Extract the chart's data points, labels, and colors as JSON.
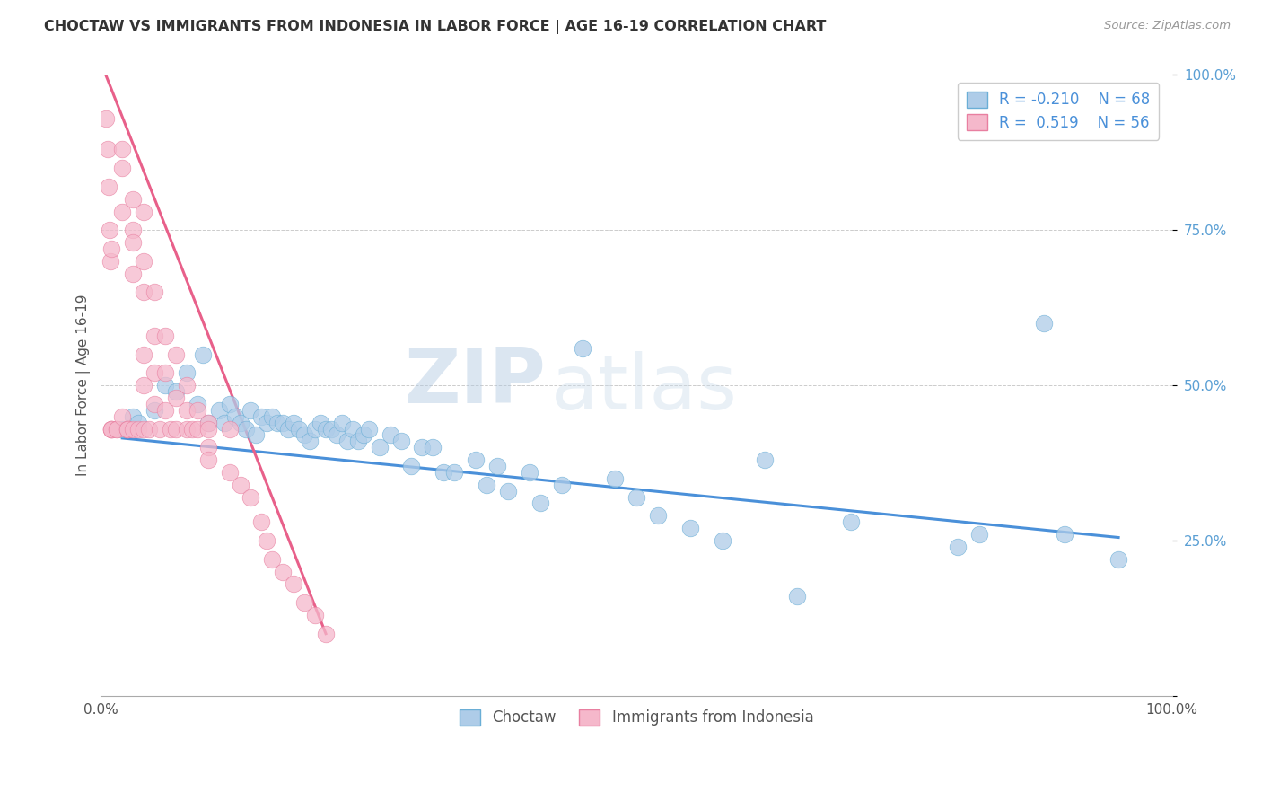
{
  "title": "CHOCTAW VS IMMIGRANTS FROM INDONESIA IN LABOR FORCE | AGE 16-19 CORRELATION CHART",
  "source_text": "Source: ZipAtlas.com",
  "ylabel": "In Labor Force | Age 16-19",
  "xlim": [
    0.0,
    1.0
  ],
  "ylim": [
    0.0,
    1.0
  ],
  "color_blue_fill": "#aecce8",
  "color_blue_edge": "#6aaed6",
  "color_pink_fill": "#f5b8cb",
  "color_pink_edge": "#e87fa0",
  "line_blue": "#4a90d9",
  "line_pink": "#e8608a",
  "watermark_zip": "ZIP",
  "watermark_atlas": "atlas",
  "choctaw_x": [
    0.02,
    0.03,
    0.035,
    0.05,
    0.06,
    0.07,
    0.08,
    0.09,
    0.095,
    0.1,
    0.11,
    0.115,
    0.12,
    0.125,
    0.13,
    0.135,
    0.14,
    0.145,
    0.15,
    0.155,
    0.16,
    0.165,
    0.17,
    0.175,
    0.18,
    0.185,
    0.19,
    0.195,
    0.2,
    0.205,
    0.21,
    0.215,
    0.22,
    0.225,
    0.23,
    0.235,
    0.24,
    0.245,
    0.25,
    0.26,
    0.27,
    0.28,
    0.29,
    0.3,
    0.31,
    0.32,
    0.33,
    0.35,
    0.36,
    0.37,
    0.38,
    0.4,
    0.41,
    0.43,
    0.45,
    0.48,
    0.5,
    0.52,
    0.55,
    0.58,
    0.62,
    0.65,
    0.7,
    0.8,
    0.82,
    0.88,
    0.9,
    0.95
  ],
  "choctaw_y": [
    0.43,
    0.45,
    0.44,
    0.46,
    0.5,
    0.49,
    0.52,
    0.47,
    0.55,
    0.44,
    0.46,
    0.44,
    0.47,
    0.45,
    0.44,
    0.43,
    0.46,
    0.42,
    0.45,
    0.44,
    0.45,
    0.44,
    0.44,
    0.43,
    0.44,
    0.43,
    0.42,
    0.41,
    0.43,
    0.44,
    0.43,
    0.43,
    0.42,
    0.44,
    0.41,
    0.43,
    0.41,
    0.42,
    0.43,
    0.4,
    0.42,
    0.41,
    0.37,
    0.4,
    0.4,
    0.36,
    0.36,
    0.38,
    0.34,
    0.37,
    0.33,
    0.36,
    0.31,
    0.34,
    0.56,
    0.35,
    0.32,
    0.29,
    0.27,
    0.25,
    0.38,
    0.16,
    0.28,
    0.24,
    0.26,
    0.6,
    0.26,
    0.22
  ],
  "indonesia_x": [
    0.005,
    0.006,
    0.007,
    0.008,
    0.009,
    0.01,
    0.01,
    0.01,
    0.01,
    0.01,
    0.015,
    0.015,
    0.02,
    0.02,
    0.02,
    0.02,
    0.025,
    0.025,
    0.025,
    0.03,
    0.03,
    0.03,
    0.03,
    0.03,
    0.035,
    0.04,
    0.04,
    0.04,
    0.04,
    0.04,
    0.04,
    0.045,
    0.05,
    0.05,
    0.05,
    0.05,
    0.055,
    0.06,
    0.06,
    0.06,
    0.065,
    0.07,
    0.07,
    0.07,
    0.08,
    0.08,
    0.08,
    0.085,
    0.09,
    0.09,
    0.1,
    0.1,
    0.1,
    0.1,
    0.12,
    0.12,
    0.13,
    0.14,
    0.15,
    0.155,
    0.16,
    0.17,
    0.18,
    0.19,
    0.2,
    0.21
  ],
  "indonesia_y": [
    0.93,
    0.88,
    0.82,
    0.75,
    0.7,
    0.43,
    0.43,
    0.43,
    0.72,
    0.43,
    0.43,
    0.43,
    0.88,
    0.85,
    0.78,
    0.45,
    0.43,
    0.43,
    0.43,
    0.8,
    0.75,
    0.73,
    0.68,
    0.43,
    0.43,
    0.78,
    0.7,
    0.65,
    0.55,
    0.5,
    0.43,
    0.43,
    0.65,
    0.58,
    0.52,
    0.47,
    0.43,
    0.58,
    0.52,
    0.46,
    0.43,
    0.55,
    0.48,
    0.43,
    0.5,
    0.46,
    0.43,
    0.43,
    0.46,
    0.43,
    0.44,
    0.43,
    0.4,
    0.38,
    0.36,
    0.43,
    0.34,
    0.32,
    0.28,
    0.25,
    0.22,
    0.2,
    0.18,
    0.15,
    0.13,
    0.1
  ],
  "blue_trend_x": [
    0.02,
    0.95
  ],
  "blue_trend_y": [
    0.415,
    0.255
  ],
  "pink_trend_x_start": 0.0,
  "pink_trend_x_end": 0.21,
  "pink_trend_y_start": 1.02,
  "pink_trend_y_end": 0.1
}
